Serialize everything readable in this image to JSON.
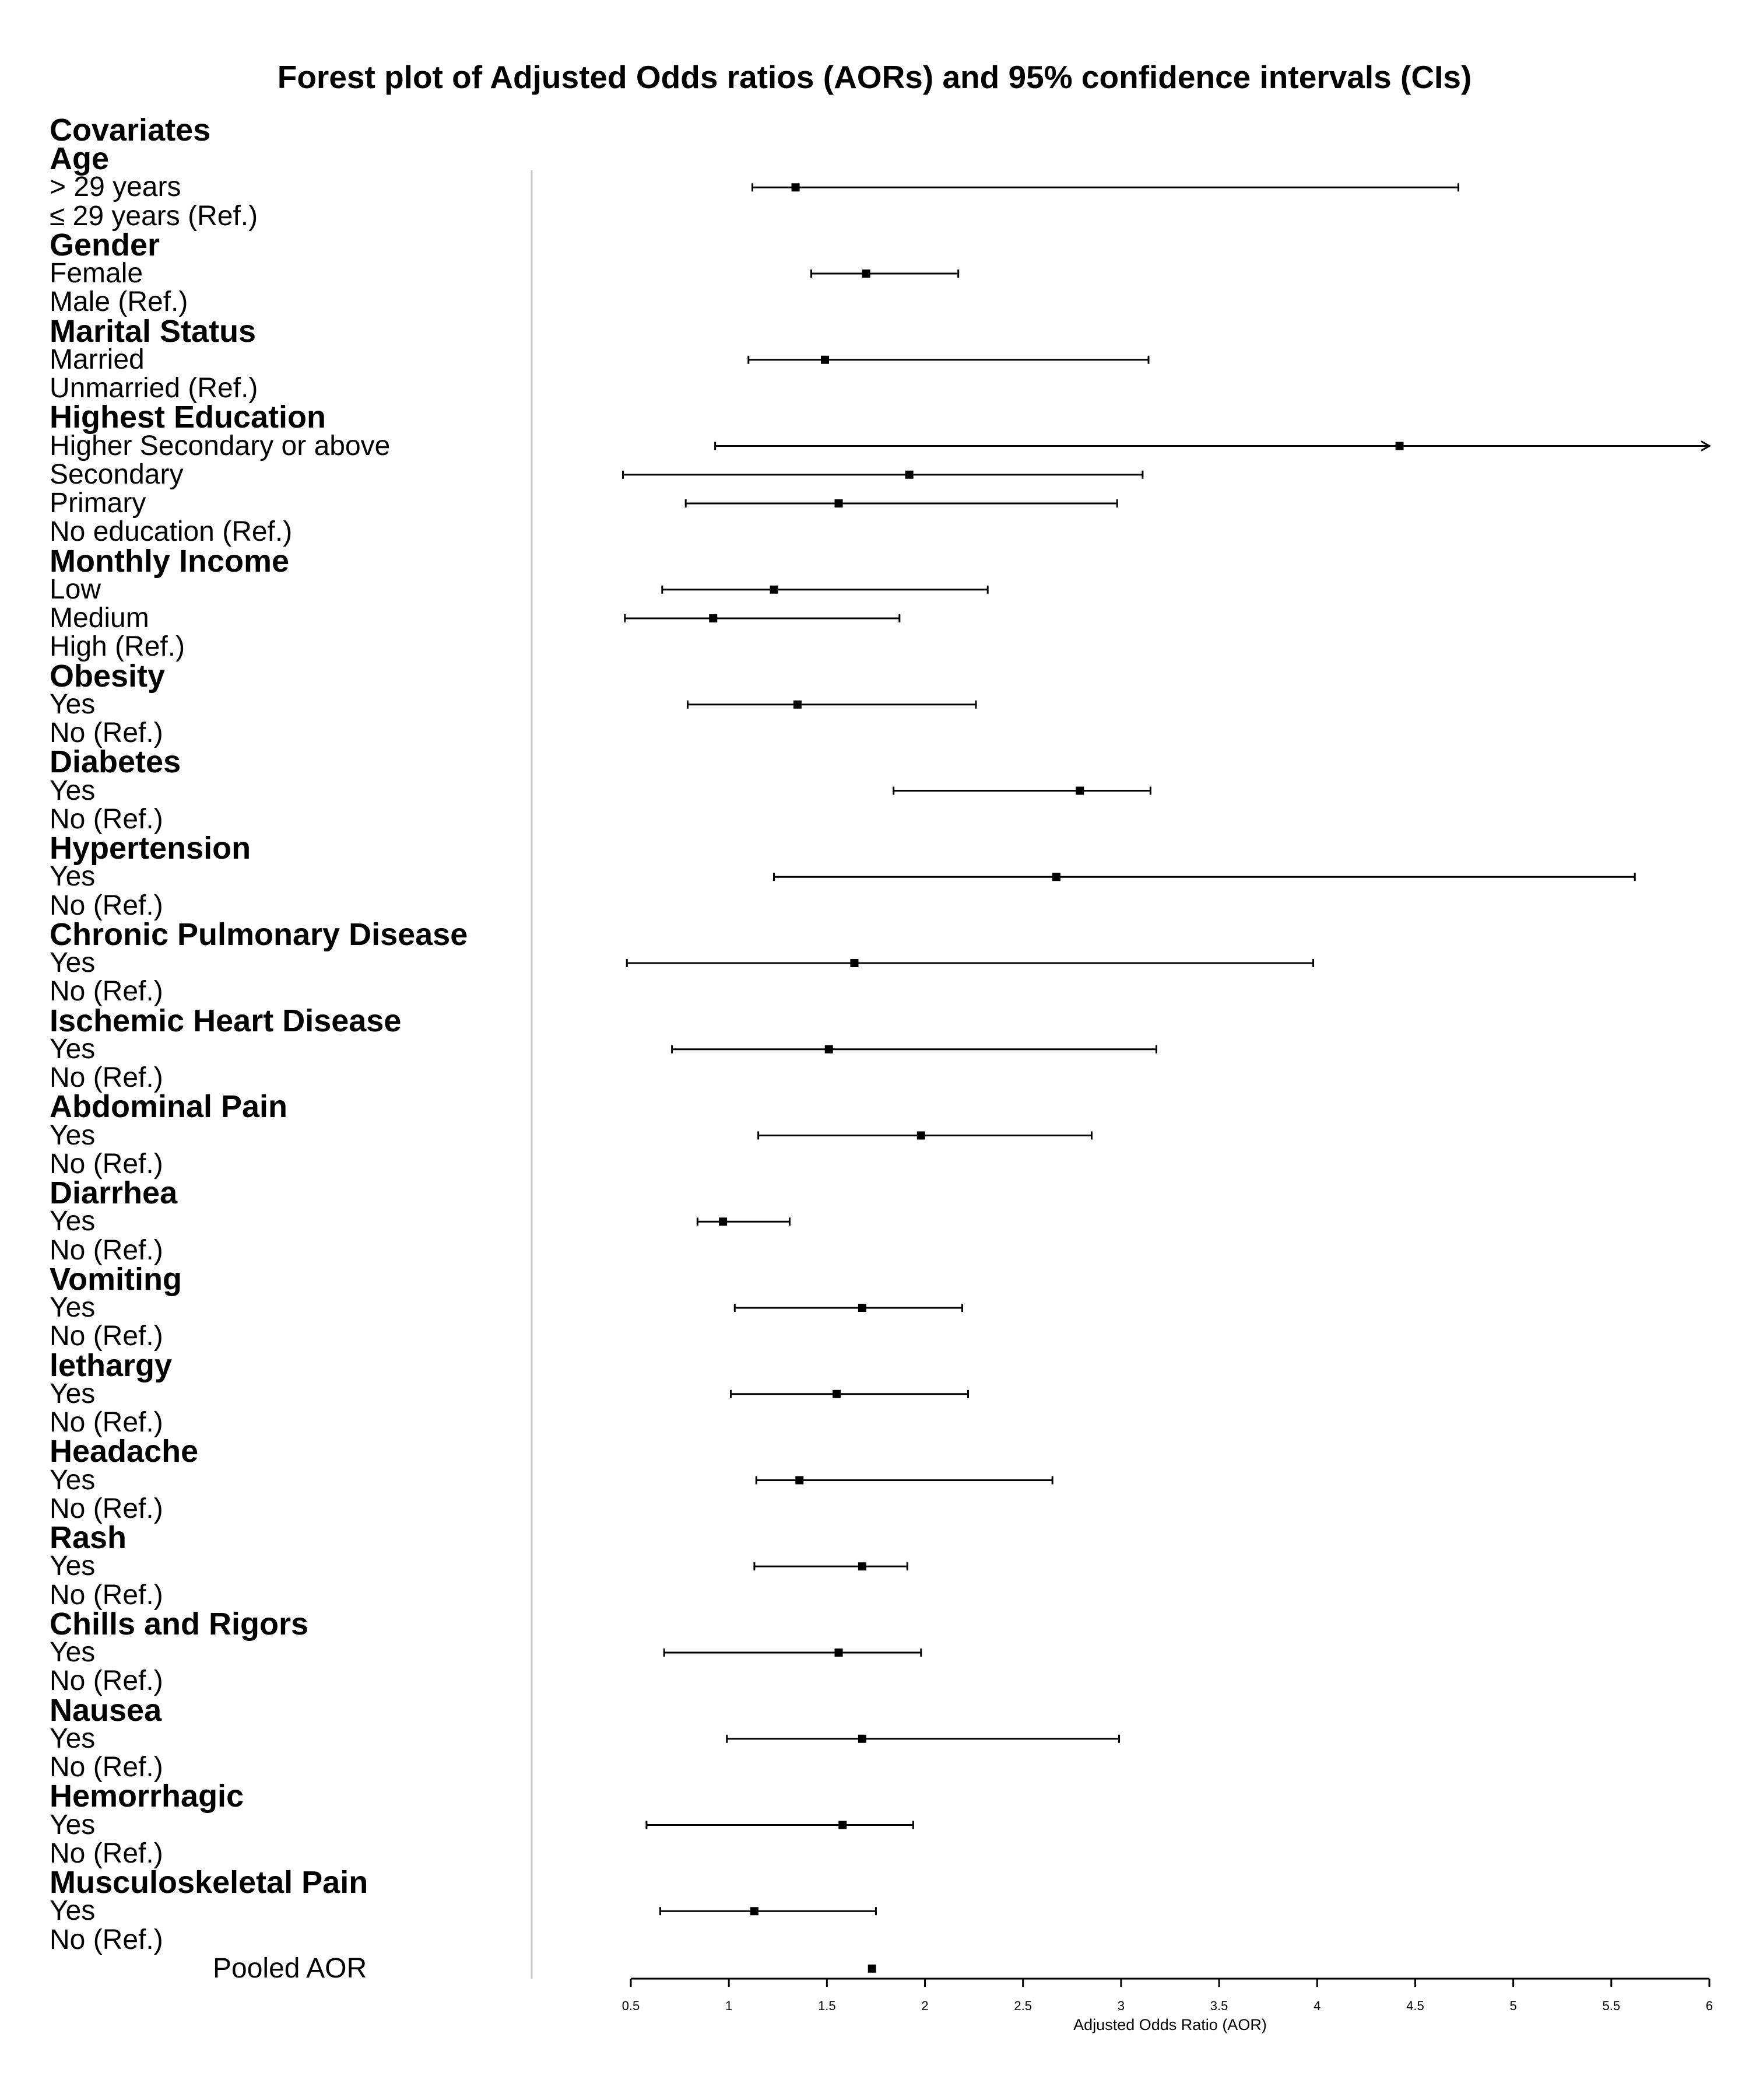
{
  "chart_data": {
    "type": "forest",
    "title": "Forest plot of Adjusted Odds ratios (AORs) and 95% confidence intervals (CIs)",
    "column_header": "Covariates",
    "xlabel": "Adjusted Odds Ratio (AOR)",
    "xlim": [
      0.5,
      6
    ],
    "xticks": [
      "0.5",
      "1",
      "1.5",
      "2",
      "2.5",
      "3",
      "3.5",
      "4",
      "4.5",
      "5",
      "5.5",
      "6"
    ],
    "rows": [
      {
        "label": "Age",
        "kind": "header"
      },
      {
        "label": "> 29 years",
        "kind": "level",
        "aor": 1.34,
        "lo": 1.12,
        "hi": 4.72
      },
      {
        "label": "≤ 29 years (Ref.)",
        "kind": "level"
      },
      {
        "label": "Gender",
        "kind": "header"
      },
      {
        "label": "Female",
        "kind": "level",
        "aor": 1.7,
        "lo": 1.42,
        "hi": 2.17
      },
      {
        "label": "Male (Ref.)",
        "kind": "level"
      },
      {
        "label": "Marital Status",
        "kind": "header"
      },
      {
        "label": "Married",
        "kind": "level",
        "aor": 1.49,
        "lo": 1.1,
        "hi": 3.14
      },
      {
        "label": "Unmarried (Ref.)",
        "kind": "level"
      },
      {
        "label": "Highest Education",
        "kind": "header"
      },
      {
        "label": "Higher Secondary or above",
        "kind": "level",
        "aor": 4.42,
        "lo": 0.93,
        "hi": 6.0,
        "arrow": true
      },
      {
        "label": "Secondary",
        "kind": "level",
        "aor": 1.92,
        "lo": 0.46,
        "hi": 3.11
      },
      {
        "label": "Primary",
        "kind": "level",
        "aor": 1.56,
        "lo": 0.78,
        "hi": 2.98
      },
      {
        "label": "No education (Ref.)",
        "kind": "level"
      },
      {
        "label": "Monthly Income",
        "kind": "header"
      },
      {
        "label": "Low",
        "kind": "level",
        "aor": 1.23,
        "lo": 0.66,
        "hi": 2.32
      },
      {
        "label": "Medium",
        "kind": "level",
        "aor": 0.92,
        "lo": 0.47,
        "hi": 1.87
      },
      {
        "label": "High (Ref.)",
        "kind": "level"
      },
      {
        "label": "Obesity",
        "kind": "header"
      },
      {
        "label": "Yes",
        "kind": "level",
        "aor": 1.35,
        "lo": 0.79,
        "hi": 2.26
      },
      {
        "label": "No (Ref.)",
        "kind": "level"
      },
      {
        "label": "Diabetes",
        "kind": "header"
      },
      {
        "label": "Yes",
        "kind": "level",
        "aor": 2.79,
        "lo": 1.84,
        "hi": 3.15
      },
      {
        "label": "No (Ref.)",
        "kind": "level"
      },
      {
        "label": "Hypertension",
        "kind": "header"
      },
      {
        "label": "Yes",
        "kind": "level",
        "aor": 2.67,
        "lo": 1.23,
        "hi": 5.62
      },
      {
        "label": "No (Ref.)",
        "kind": "level"
      },
      {
        "label": "Chronic Pulmonary Disease",
        "kind": "header"
      },
      {
        "label": "Yes",
        "kind": "level",
        "aor": 1.64,
        "lo": 0.48,
        "hi": 3.98
      },
      {
        "label": "No (Ref.)",
        "kind": "level"
      },
      {
        "label": "Ischemic Heart Disease",
        "kind": "header"
      },
      {
        "label": "Yes",
        "kind": "level",
        "aor": 1.51,
        "lo": 0.71,
        "hi": 3.18
      },
      {
        "label": "No (Ref.)",
        "kind": "level"
      },
      {
        "label": "Abdominal Pain",
        "kind": "header"
      },
      {
        "label": "Yes",
        "kind": "level",
        "aor": 1.98,
        "lo": 1.15,
        "hi": 2.85
      },
      {
        "label": "No (Ref.)",
        "kind": "level"
      },
      {
        "label": "Diarrhea",
        "kind": "header"
      },
      {
        "label": "Yes",
        "kind": "level",
        "aor": 0.97,
        "lo": 0.84,
        "hi": 1.31
      },
      {
        "label": "No (Ref.)",
        "kind": "level"
      },
      {
        "label": "Vomiting",
        "kind": "header"
      },
      {
        "label": "Yes",
        "kind": "level",
        "aor": 1.68,
        "lo": 1.03,
        "hi": 2.19
      },
      {
        "label": "No (Ref.)",
        "kind": "level"
      },
      {
        "label": "lethargy",
        "kind": "header"
      },
      {
        "label": "Yes",
        "kind": "level",
        "aor": 1.55,
        "lo": 1.01,
        "hi": 2.22
      },
      {
        "label": "No (Ref.)",
        "kind": "level"
      },
      {
        "label": "Headache",
        "kind": "header"
      },
      {
        "label": "Yes",
        "kind": "level",
        "aor": 1.36,
        "lo": 1.14,
        "hi": 2.65
      },
      {
        "label": "No (Ref.)",
        "kind": "level"
      },
      {
        "label": "Rash",
        "kind": "header"
      },
      {
        "label": "Yes",
        "kind": "level",
        "aor": 1.68,
        "lo": 1.13,
        "hi": 1.91
      },
      {
        "label": "No (Ref.)",
        "kind": "level"
      },
      {
        "label": "Chills and Rigors",
        "kind": "header"
      },
      {
        "label": "Yes",
        "kind": "level",
        "aor": 1.56,
        "lo": 0.67,
        "hi": 1.98
      },
      {
        "label": "No (Ref.)",
        "kind": "level"
      },
      {
        "label": "Nausea",
        "kind": "header"
      },
      {
        "label": "Yes",
        "kind": "level",
        "aor": 1.68,
        "lo": 0.99,
        "hi": 2.99
      },
      {
        "label": "No (Ref.)",
        "kind": "level"
      },
      {
        "label": "Hemorrhagic",
        "kind": "header"
      },
      {
        "label": "Yes",
        "kind": "level",
        "aor": 1.58,
        "lo": 0.58,
        "hi": 1.94
      },
      {
        "label": "No (Ref.)",
        "kind": "level"
      },
      {
        "label": "Musculoskeletal Pain",
        "kind": "header"
      },
      {
        "label": "Yes",
        "kind": "level",
        "aor": 1.13,
        "lo": 0.65,
        "hi": 1.75
      },
      {
        "label": "No (Ref.)",
        "kind": "level"
      },
      {
        "label": "Pooled AOR",
        "kind": "pooled",
        "aor": 1.73
      }
    ]
  }
}
